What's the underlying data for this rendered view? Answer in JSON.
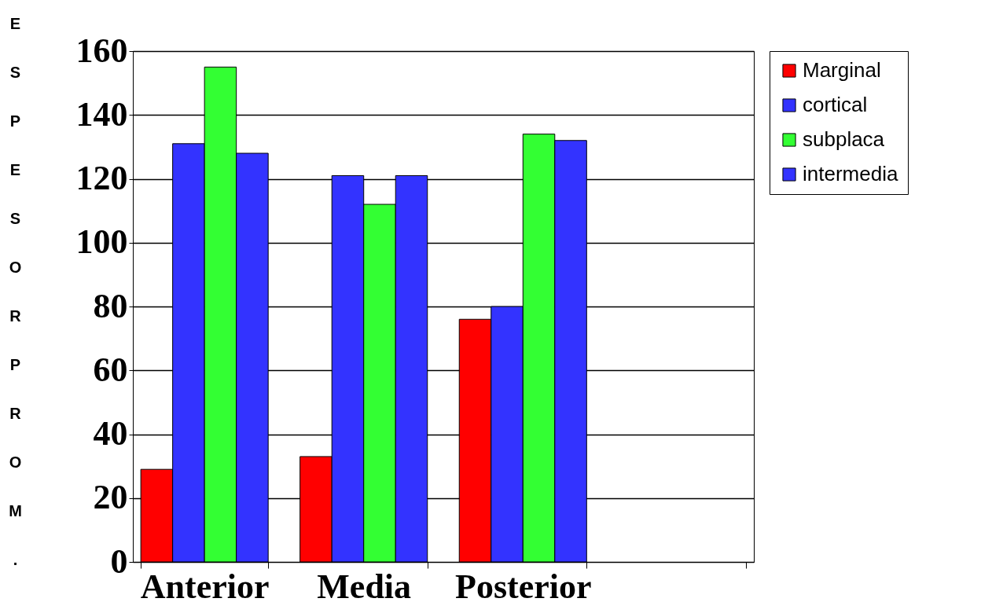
{
  "chart_data": {
    "type": "bar",
    "ylabel": "ESPESOR PROM.",
    "categories": [
      "Anterior",
      "Media",
      "Posterior",
      null
    ],
    "series": [
      {
        "name": "Marginal",
        "color": "#ff0000",
        "values": [
          29,
          33,
          76,
          null
        ]
      },
      {
        "name": "cortical",
        "color": "#3333ff",
        "values": [
          131,
          121,
          80,
          null
        ]
      },
      {
        "name": "subplaca",
        "color": "#33ff33",
        "values": [
          155,
          112,
          134,
          null
        ]
      },
      {
        "name": "intermedia",
        "color": "#3333ff",
        "values": [
          128,
          121,
          132,
          null
        ]
      }
    ],
    "ylim": [
      0,
      160
    ],
    "yticks": [
      0,
      20,
      40,
      60,
      80,
      100,
      120,
      140,
      160
    ],
    "grid": "y",
    "legend": "right"
  }
}
